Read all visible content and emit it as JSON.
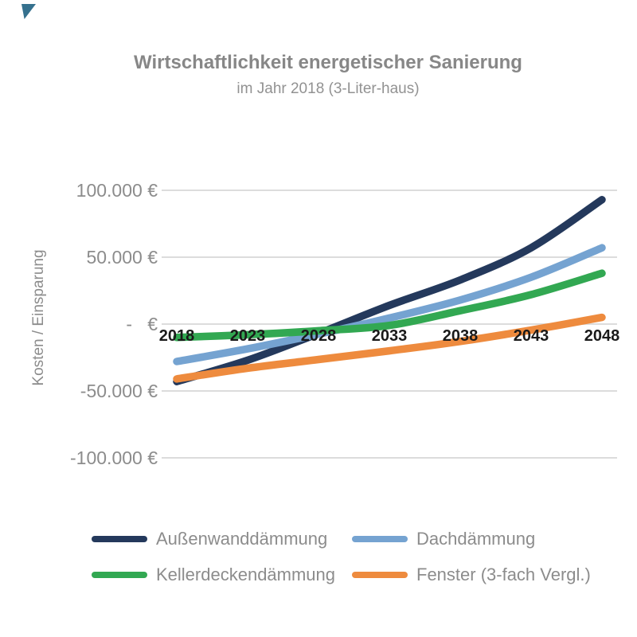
{
  "branding": {
    "corner_triangle_color": "#35718e"
  },
  "chart_data": {
    "type": "line",
    "title": "Wirtschaftlichkeit energetischer Sanierung",
    "subtitle": "im Jahr 2018 (3-Liter-haus)",
    "ylabel": "Kosten / Einsparung",
    "x": [
      2018,
      2023,
      2028,
      2033,
      2038,
      2043,
      2048
    ],
    "series": [
      {
        "name": "Außenwanddämmung",
        "color": "#24395c",
        "values": [
          -43000,
          -27000,
          -7000,
          14000,
          33000,
          57000,
          93000
        ]
      },
      {
        "name": "Dachdämmung",
        "color": "#75a3d1",
        "values": [
          -28000,
          -18500,
          -7500,
          4500,
          18000,
          35000,
          57000
        ]
      },
      {
        "name": "Kellerdeckendämmung",
        "color": "#32a852",
        "values": [
          -10000,
          -8000,
          -5000,
          -1000,
          10000,
          22000,
          38000
        ]
      },
      {
        "name": "Fenster (3-fach Vergl.)",
        "color": "#ee8b3e",
        "values": [
          -41000,
          -33000,
          -26500,
          -20000,
          -13000,
          -4500,
          5000
        ]
      }
    ],
    "yticks": [
      {
        "value": 100000,
        "label": "100.000 €"
      },
      {
        "value": 50000,
        "label": "50.000 €"
      },
      {
        "value": 0,
        "label": "-   €"
      },
      {
        "value": -50000,
        "label": "-50.000 €"
      },
      {
        "value": -100000,
        "label": "-100.000 €"
      }
    ],
    "ylim": [
      -100000,
      100000
    ],
    "grid": true,
    "grid_color": "#dcdcdc",
    "legend_position": "bottom"
  }
}
